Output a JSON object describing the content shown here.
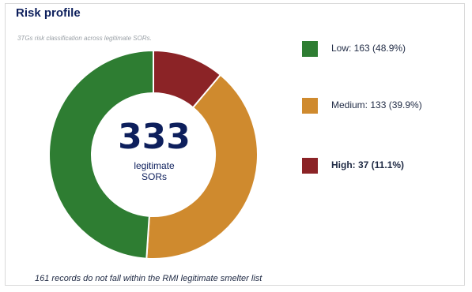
{
  "card": {
    "title": "Risk profile",
    "subtitle": "3TGs risk classification across legitimate SORs.",
    "footnote": "161 records do not fall within the RMI legitimate smelter list"
  },
  "center": {
    "value": "333",
    "label_line1": "legitimate",
    "label_line2": "SORs"
  },
  "legend": [
    {
      "label": "Low: 163 (48.9%)",
      "color": "#2e7d32",
      "bold": false
    },
    {
      "label": "Medium: 133 (39.9%)",
      "color": "#cf8a2e",
      "bold": false
    },
    {
      "label": "High: 37 (11.1%)",
      "color": "#8b2326",
      "bold": true
    }
  ],
  "chart_data": {
    "type": "pie",
    "donut": true,
    "title": "Risk profile",
    "subtitle": "3TGs risk classification across legitimate SORs.",
    "categories": [
      "Low",
      "Medium",
      "High"
    ],
    "values": [
      163,
      133,
      37
    ],
    "percentages": [
      48.9,
      39.9,
      11.1
    ],
    "colors": [
      "#2e7d32",
      "#cf8a2e",
      "#8b2326"
    ],
    "total": 333,
    "start": "top",
    "direction": "clockwise",
    "slice_order": [
      "High",
      "Medium",
      "Low"
    ],
    "legend_position": "right"
  }
}
